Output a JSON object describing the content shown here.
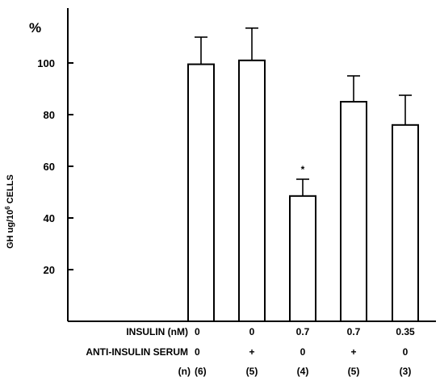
{
  "chart_data": {
    "type": "bar",
    "ylabel": "GH ug/10",
    "ylabel_superscript": "6",
    "ylabel_suffix": " CELLS",
    "unit_label": "%",
    "ylim": [
      0,
      120
    ],
    "yticks": [
      "20",
      "40",
      "60",
      "80",
      "100"
    ],
    "values": [
      99.5,
      101,
      48.5,
      85,
      76
    ],
    "errors": [
      10.5,
      12.5,
      6.5,
      10,
      11.5
    ],
    "annotations": [
      "",
      "",
      "*",
      "",
      ""
    ],
    "rows": [
      {
        "label": "INSULIN (nM)",
        "values": [
          "0",
          "0",
          "0.7",
          "0.7",
          "0.35"
        ]
      },
      {
        "label": "ANTI-INSULIN SERUM",
        "values": [
          "0",
          "+",
          "0",
          "+",
          "0"
        ]
      },
      {
        "label": "(n)",
        "values": [
          "(6)",
          "(5)",
          "(4)",
          "(5)",
          "(3)"
        ]
      }
    ],
    "grid": false,
    "legend": "none",
    "bar_fill": "#ffffff",
    "stroke_color": "#000000"
  }
}
